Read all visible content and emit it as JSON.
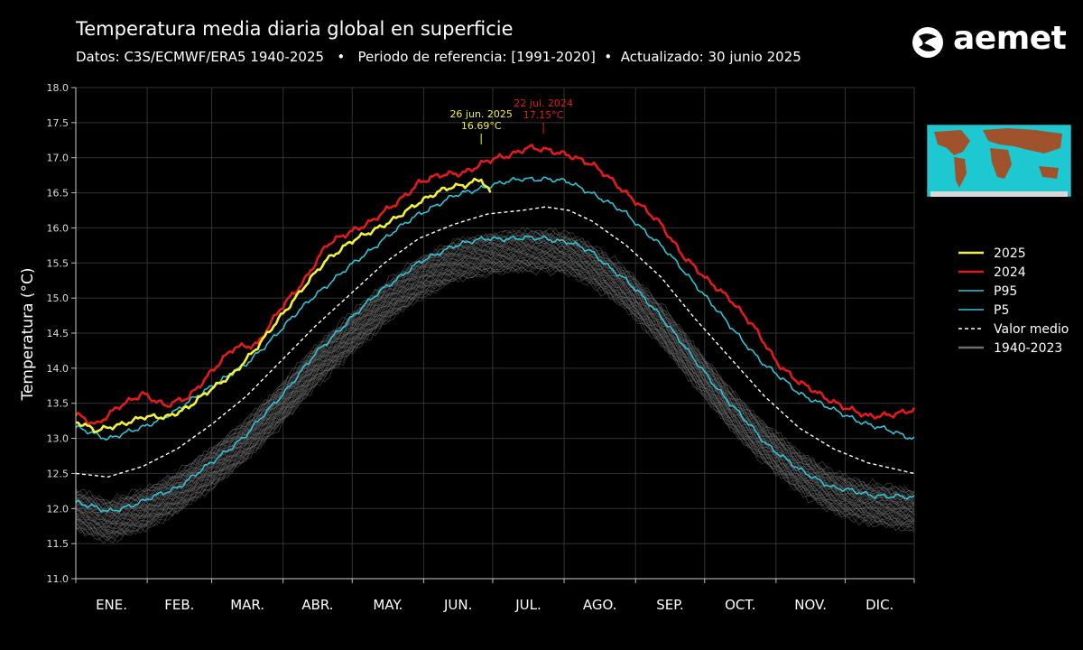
{
  "header": {
    "title": "Temperatura media diaria global en superficie",
    "subtitle": "Datos: C3S/ECMWF/ERA5 1940-2025   •   Periodo de referencia: [1991-2020]  •  Actualizado: 30 junio 2025",
    "logo_text": "aemet"
  },
  "colors": {
    "background": "#000000",
    "y2025": "#f2f23a",
    "y2024": "#e01b1b",
    "percentile": "#2ec4d6",
    "mean": "#ffffff",
    "history": "#6e6e6e",
    "map_ocean": "#1ec8d0",
    "map_land": "#a0522d"
  },
  "icons": {
    "logo": "aemet-logo-icon",
    "map": "world-map-icon"
  },
  "chart_data": {
    "type": "line",
    "title": "Temperatura media diaria global en superficie",
    "ylabel": "Temperatura (°C)",
    "xlabel": "",
    "xlim": [
      1,
      365
    ],
    "ylim": [
      11.0,
      18.0
    ],
    "yticks": [
      "11.0",
      "11.5",
      "12.0",
      "12.5",
      "13.0",
      "13.5",
      "14.0",
      "14.5",
      "15.0",
      "15.5",
      "16.0",
      "16.5",
      "17.0",
      "17.5",
      "18.0"
    ],
    "month_labels": [
      "ENE.",
      "FEB.",
      "MAR.",
      "ABR.",
      "MAY.",
      "JUN.",
      "JUL.",
      "AGO.",
      "SEP.",
      "OCT.",
      "NOV.",
      "DIC."
    ],
    "grid": true,
    "legend_position": "right",
    "legend": [
      {
        "label": "2025",
        "series": "2025"
      },
      {
        "label": "2024",
        "series": "2024"
      },
      {
        "label": "P95",
        "series": "P95"
      },
      {
        "label": "P5",
        "series": "P5"
      },
      {
        "label": "Valor medio",
        "series": "mean"
      },
      {
        "label": "1940-2023",
        "series": "history"
      }
    ],
    "series": [
      {
        "name": "2025",
        "x": [
          1,
          10,
          20,
          30,
          40,
          50,
          60,
          70,
          80,
          90,
          100,
          110,
          120,
          130,
          140,
          150,
          160,
          165,
          170,
          177,
          181
        ],
        "y": [
          13.25,
          13.1,
          13.2,
          13.3,
          13.3,
          13.45,
          13.7,
          13.95,
          14.3,
          14.75,
          15.15,
          15.55,
          15.8,
          15.95,
          16.15,
          16.35,
          16.55,
          16.6,
          16.6,
          16.69,
          16.5
        ]
      },
      {
        "name": "2024",
        "x": [
          1,
          10,
          20,
          30,
          40,
          50,
          60,
          70,
          80,
          90,
          100,
          110,
          120,
          130,
          140,
          150,
          160,
          170,
          180,
          190,
          197,
          205,
          215,
          225,
          235,
          245,
          255,
          265,
          275,
          285,
          295,
          305,
          315,
          325,
          335,
          345,
          355,
          365
        ],
        "y": [
          13.35,
          13.2,
          13.45,
          13.65,
          13.45,
          13.6,
          13.95,
          14.3,
          14.35,
          14.85,
          15.25,
          15.75,
          15.95,
          16.1,
          16.35,
          16.65,
          16.75,
          16.8,
          16.95,
          17.05,
          17.15,
          17.1,
          17.05,
          16.9,
          16.65,
          16.35,
          16.05,
          15.6,
          15.25,
          15.0,
          14.6,
          14.1,
          13.8,
          13.6,
          13.45,
          13.3,
          13.35,
          13.4
        ]
      },
      {
        "name": "P95",
        "x": [
          1,
          15,
          30,
          45,
          60,
          75,
          90,
          105,
          120,
          135,
          150,
          165,
          180,
          195,
          205,
          215,
          225,
          240,
          255,
          270,
          285,
          300,
          315,
          330,
          345,
          365
        ],
        "y": [
          13.15,
          13.0,
          13.15,
          13.4,
          13.75,
          14.05,
          14.55,
          15.05,
          15.45,
          15.85,
          16.2,
          16.45,
          16.6,
          16.7,
          16.7,
          16.65,
          16.5,
          16.2,
          15.75,
          15.2,
          14.6,
          14.05,
          13.65,
          13.4,
          13.2,
          13.0
        ]
      },
      {
        "name": "P5",
        "x": [
          1,
          15,
          30,
          45,
          60,
          75,
          90,
          105,
          120,
          135,
          150,
          165,
          180,
          195,
          205,
          215,
          225,
          240,
          255,
          270,
          285,
          300,
          315,
          330,
          345,
          365
        ],
        "y": [
          12.1,
          11.95,
          12.1,
          12.3,
          12.65,
          13.05,
          13.6,
          14.2,
          14.7,
          15.15,
          15.5,
          15.75,
          15.85,
          15.85,
          15.85,
          15.8,
          15.65,
          15.25,
          14.75,
          14.1,
          13.5,
          12.95,
          12.55,
          12.3,
          12.2,
          12.15
        ]
      },
      {
        "name": "mean",
        "x": [
          1,
          15,
          30,
          45,
          60,
          75,
          90,
          105,
          120,
          135,
          150,
          165,
          180,
          195,
          205,
          215,
          225,
          240,
          255,
          270,
          285,
          300,
          315,
          330,
          345,
          365
        ],
        "y": [
          12.5,
          12.45,
          12.6,
          12.85,
          13.2,
          13.6,
          14.1,
          14.6,
          15.05,
          15.5,
          15.85,
          16.05,
          16.2,
          16.25,
          16.3,
          16.25,
          16.1,
          15.75,
          15.3,
          14.7,
          14.15,
          13.6,
          13.15,
          12.85,
          12.65,
          12.5
        ]
      },
      {
        "name": "history",
        "x": [
          1,
          15,
          30,
          45,
          60,
          75,
          90,
          105,
          120,
          135,
          150,
          165,
          180,
          195,
          205,
          215,
          225,
          240,
          255,
          270,
          285,
          300,
          315,
          330,
          345,
          365
        ],
        "y": [
          12.0,
          11.85,
          12.0,
          12.25,
          12.6,
          13.0,
          13.5,
          14.05,
          14.5,
          14.95,
          15.3,
          15.55,
          15.65,
          15.7,
          15.7,
          15.65,
          15.5,
          15.15,
          14.65,
          14.05,
          13.45,
          12.95,
          12.55,
          12.25,
          12.1,
          12.0
        ]
      }
    ],
    "annotations": [
      {
        "date": "26 jun. 2025",
        "value": "16.69°C",
        "x": 177,
        "color": "#f2f23a"
      },
      {
        "date": "22 jul. 2024",
        "value": "17.15°C",
        "x": 204,
        "color": "#e01b1b"
      }
    ]
  }
}
